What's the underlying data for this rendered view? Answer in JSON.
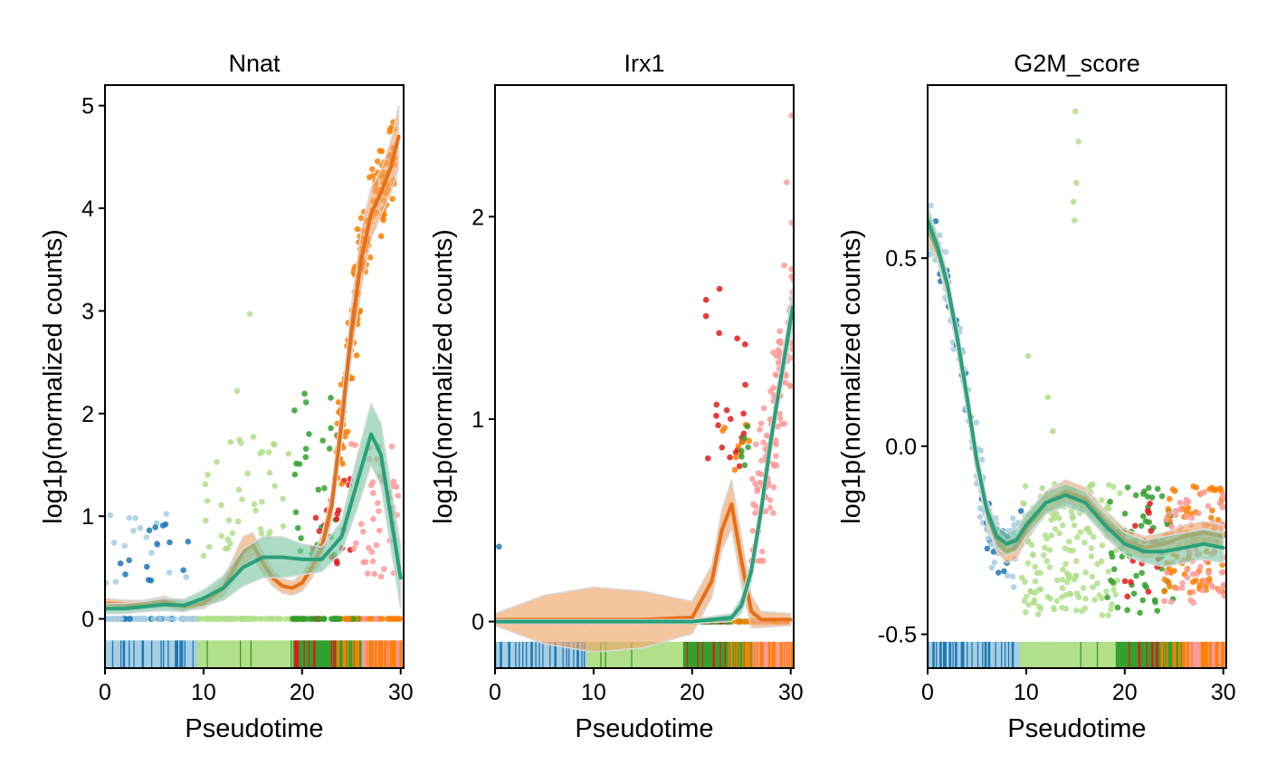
{
  "palette": {
    "light_blue": "#a6cee3",
    "dark_blue": "#1f78b4",
    "light_green": "#b2df8a",
    "dark_green": "#33a02c",
    "pink": "#fb9a99",
    "red": "#e31a1c",
    "orange": "#ff7f00",
    "smooth_orange": "#e66f1a",
    "smooth_teal": "#2aa07b",
    "band_orange": "#f0a66a",
    "band_teal": "#7fc9a6"
  },
  "chart_data": [
    {
      "type": "scatter",
      "title": "Nnat",
      "xlabel": "Pseudotime",
      "ylabel": "log1p(normalized counts)",
      "xlim": [
        0,
        30.3
      ],
      "ylim": [
        -0.48,
        5.2
      ],
      "xticks": [
        {
          "value": 0,
          "label": "0"
        },
        {
          "value": 10,
          "label": "10"
        },
        {
          "value": 20,
          "label": "20"
        },
        {
          "value": 30,
          "label": "30"
        }
      ],
      "yticks": [
        {
          "value": 0,
          "label": "0"
        },
        {
          "value": 1,
          "label": "1"
        },
        {
          "value": 2,
          "label": "2"
        },
        {
          "value": 3,
          "label": "3"
        },
        {
          "value": 4,
          "label": "4"
        },
        {
          "value": 5,
          "label": "5"
        }
      ],
      "rug_y": [
        -0.48,
        -0.21
      ],
      "series": [
        {
          "color": "#e66f1a",
          "band": "#f0a66a",
          "points": [
            [
              0,
              0.15
            ],
            [
              2,
              0.14
            ],
            [
              4,
              0.14
            ],
            [
              6,
              0.17
            ],
            [
              8,
              0.12
            ],
            [
              10,
              0.15
            ],
            [
              12,
              0.3
            ],
            [
              14,
              0.65
            ],
            [
              15,
              0.72
            ],
            [
              16,
              0.55
            ],
            [
              17,
              0.4
            ],
            [
              18,
              0.32
            ],
            [
              19,
              0.3
            ],
            [
              20,
              0.35
            ],
            [
              21,
              0.5
            ],
            [
              22,
              0.7
            ],
            [
              23,
              1.1
            ],
            [
              24,
              1.9
            ],
            [
              25,
              2.8
            ],
            [
              26,
              3.5
            ],
            [
              27,
              3.95
            ],
            [
              28,
              4.15
            ],
            [
              29,
              4.4
            ],
            [
              29.8,
              4.7
            ]
          ],
          "band_width": [
            0.05,
            0.04,
            0.04,
            0.05,
            0.04,
            0.05,
            0.08,
            0.15,
            0.12,
            0.1,
            0.08,
            0.07,
            0.07,
            0.08,
            0.1,
            0.12,
            0.15,
            0.2,
            0.25,
            0.28,
            0.25,
            0.22,
            0.25,
            0.3
          ]
        },
        {
          "color": "#2aa07b",
          "band": "#7fc9a6",
          "points": [
            [
              0,
              0.1
            ],
            [
              2,
              0.1
            ],
            [
              4,
              0.12
            ],
            [
              6,
              0.14
            ],
            [
              8,
              0.13
            ],
            [
              10,
              0.2
            ],
            [
              12,
              0.3
            ],
            [
              14,
              0.5
            ],
            [
              16,
              0.6
            ],
            [
              18,
              0.6
            ],
            [
              20,
              0.58
            ],
            [
              22,
              0.58
            ],
            [
              24,
              0.8
            ],
            [
              25.5,
              1.3
            ],
            [
              27,
              1.8
            ],
            [
              28,
              1.6
            ],
            [
              29,
              1.0
            ],
            [
              30,
              0.4
            ]
          ],
          "band_width": [
            0.05,
            0.05,
            0.05,
            0.06,
            0.06,
            0.08,
            0.12,
            0.18,
            0.2,
            0.2,
            0.15,
            0.12,
            0.15,
            0.25,
            0.3,
            0.3,
            0.3,
            0.3
          ]
        }
      ]
    },
    {
      "type": "scatter",
      "title": "Irx1",
      "xlabel": "Pseudotime",
      "ylabel": "log1p(normalized counts)",
      "xlim": [
        0,
        30.3
      ],
      "ylim": [
        -0.23,
        2.65
      ],
      "xticks": [
        {
          "value": 0,
          "label": "0"
        },
        {
          "value": 10,
          "label": "10"
        },
        {
          "value": 20,
          "label": "20"
        },
        {
          "value": 30,
          "label": "30"
        }
      ],
      "yticks": [
        {
          "value": 0,
          "label": "0"
        },
        {
          "value": 1,
          "label": "1"
        },
        {
          "value": 2,
          "label": "2"
        }
      ],
      "rug_y": [
        -0.23,
        -0.1
      ],
      "series": [
        {
          "color": "#e66f1a",
          "band": "#f0a66a",
          "points": [
            [
              0,
              0.01
            ],
            [
              5,
              0.01
            ],
            [
              10,
              0.01
            ],
            [
              15,
              0.01
            ],
            [
              20,
              0.02
            ],
            [
              22,
              0.2
            ],
            [
              23,
              0.45
            ],
            [
              24,
              0.58
            ],
            [
              25,
              0.3
            ],
            [
              26,
              0.05
            ],
            [
              27,
              0.01
            ],
            [
              30,
              0.01
            ]
          ],
          "band_width": [
            0.03,
            0.12,
            0.16,
            0.14,
            0.08,
            0.08,
            0.1,
            0.12,
            0.12,
            0.08,
            0.04,
            0.03
          ]
        },
        {
          "color": "#2aa07b",
          "band": "#7fc9a6",
          "points": [
            [
              0,
              0
            ],
            [
              10,
              0
            ],
            [
              20,
              0
            ],
            [
              24,
              0.02
            ],
            [
              25,
              0.08
            ],
            [
              26,
              0.25
            ],
            [
              27,
              0.55
            ],
            [
              28,
              0.9
            ],
            [
              29,
              1.2
            ],
            [
              30.2,
              1.55
            ]
          ],
          "band_width": [
            0.01,
            0.01,
            0.01,
            0.02,
            0.04,
            0.05,
            0.06,
            0.06,
            0.06,
            0.1
          ]
        }
      ]
    },
    {
      "type": "scatter",
      "title": "G2M_score",
      "xlabel": "Pseudotime",
      "ylabel": "log1p(normalized counts)",
      "xlim": [
        0,
        30.3
      ],
      "ylim": [
        -0.59,
        0.96
      ],
      "xticks": [
        {
          "value": 0,
          "label": "0"
        },
        {
          "value": 10,
          "label": "10"
        },
        {
          "value": 20,
          "label": "20"
        },
        {
          "value": 30,
          "label": "30"
        }
      ],
      "yticks": [
        {
          "value": -0.5,
          "label": "-0.5"
        },
        {
          "value": 0,
          "label": "0.0"
        },
        {
          "value": 0.5,
          "label": "0.5"
        }
      ],
      "rug_y": [
        -0.59,
        -0.52
      ],
      "series": [
        {
          "color": "#e66f1a",
          "band": "#f0a66a",
          "points": [
            [
              0,
              0.58
            ],
            [
              1,
              0.52
            ],
            [
              2,
              0.42
            ],
            [
              3,
              0.28
            ],
            [
              4,
              0.12
            ],
            [
              5,
              -0.05
            ],
            [
              6,
              -0.18
            ],
            [
              7,
              -0.25
            ],
            [
              8,
              -0.28
            ],
            [
              9,
              -0.27
            ],
            [
              10,
              -0.22
            ],
            [
              12,
              -0.15
            ],
            [
              14,
              -0.12
            ],
            [
              16,
              -0.14
            ],
            [
              18,
              -0.2
            ],
            [
              20,
              -0.25
            ],
            [
              22,
              -0.27
            ],
            [
              24,
              -0.26
            ],
            [
              26,
              -0.24
            ],
            [
              28,
              -0.23
            ],
            [
              30,
              -0.24
            ]
          ],
          "band_width": [
            0.04,
            0.03,
            0.03,
            0.03,
            0.03,
            0.03,
            0.03,
            0.03,
            0.03,
            0.03,
            0.03,
            0.03,
            0.03,
            0.03,
            0.03,
            0.03,
            0.03,
            0.03,
            0.03,
            0.03,
            0.03
          ]
        },
        {
          "color": "#2aa07b",
          "band": "#7fc9a6",
          "points": [
            [
              0,
              0.6
            ],
            [
              1,
              0.53
            ],
            [
              2,
              0.43
            ],
            [
              3,
              0.29
            ],
            [
              4,
              0.13
            ],
            [
              5,
              -0.04
            ],
            [
              6,
              -0.17
            ],
            [
              7,
              -0.24
            ],
            [
              8,
              -0.26
            ],
            [
              9,
              -0.25
            ],
            [
              10,
              -0.21
            ],
            [
              12,
              -0.15
            ],
            [
              14,
              -0.13
            ],
            [
              16,
              -0.15
            ],
            [
              18,
              -0.21
            ],
            [
              20,
              -0.26
            ],
            [
              22,
              -0.28
            ],
            [
              24,
              -0.28
            ],
            [
              26,
              -0.27
            ],
            [
              28,
              -0.26
            ],
            [
              30,
              -0.27
            ]
          ],
          "band_width": [
            0.04,
            0.03,
            0.03,
            0.03,
            0.03,
            0.03,
            0.03,
            0.03,
            0.03,
            0.03,
            0.03,
            0.03,
            0.03,
            0.03,
            0.03,
            0.03,
            0.03,
            0.04,
            0.04,
            0.04,
            0.04
          ]
        }
      ]
    }
  ]
}
